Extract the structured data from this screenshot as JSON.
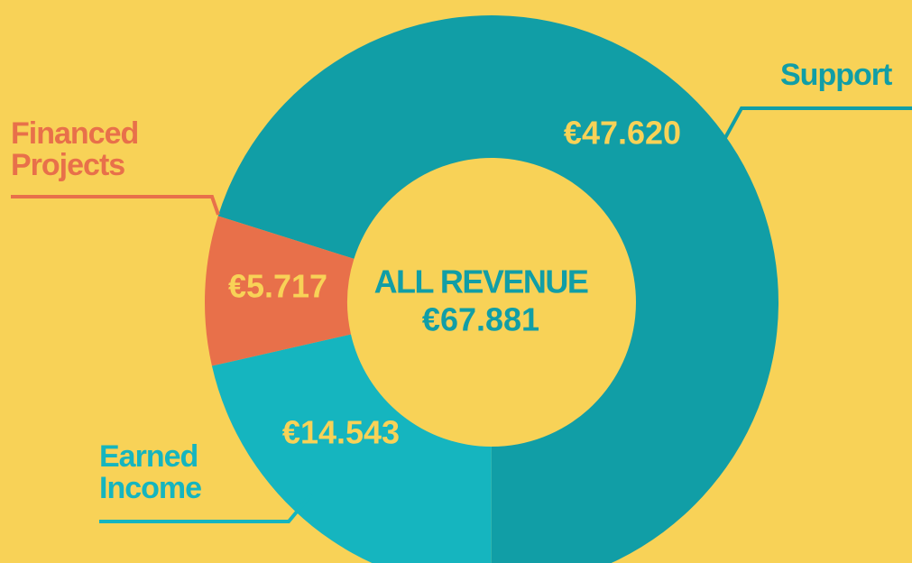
{
  "chart_data": {
    "type": "donut",
    "categories": [
      "Support",
      "Earned Income",
      "Financed Projects"
    ],
    "values": [
      47620,
      14543,
      5717
    ],
    "value_labels": [
      "€47.620",
      "€14.543",
      "€5.717"
    ],
    "colors": [
      "#119ea6",
      "#15b5bf",
      "#e8704a"
    ],
    "center_title": "ALL REVENUE",
    "center_value": "€67.881"
  }
}
